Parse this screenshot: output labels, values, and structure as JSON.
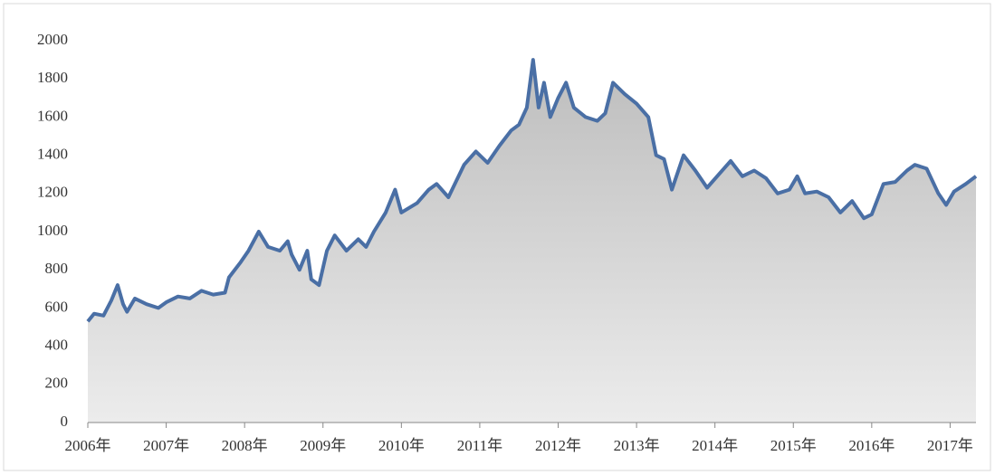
{
  "chart_data": {
    "type": "area",
    "x": [
      2006.0,
      2006.08,
      2006.2,
      2006.3,
      2006.38,
      2006.45,
      2006.5,
      2006.6,
      2006.75,
      2006.9,
      2007.0,
      2007.15,
      2007.3,
      2007.45,
      2007.6,
      2007.75,
      2007.8,
      2007.95,
      2008.05,
      2008.18,
      2008.3,
      2008.45,
      2008.55,
      2008.6,
      2008.7,
      2008.8,
      2008.85,
      2008.95,
      2009.05,
      2009.15,
      2009.3,
      2009.45,
      2009.55,
      2009.65,
      2009.8,
      2009.92,
      2010.0,
      2010.2,
      2010.35,
      2010.45,
      2010.6,
      2010.8,
      2010.95,
      2011.1,
      2011.25,
      2011.4,
      2011.5,
      2011.6,
      2011.68,
      2011.75,
      2011.82,
      2011.9,
      2012.0,
      2012.1,
      2012.2,
      2012.35,
      2012.5,
      2012.6,
      2012.7,
      2012.85,
      2013.0,
      2013.15,
      2013.25,
      2013.35,
      2013.45,
      2013.6,
      2013.75,
      2013.9,
      2014.05,
      2014.2,
      2014.35,
      2014.5,
      2014.65,
      2014.8,
      2014.95,
      2015.05,
      2015.15,
      2015.3,
      2015.45,
      2015.6,
      2015.75,
      2015.9,
      2016.0,
      2016.15,
      2016.3,
      2016.45,
      2016.55,
      2016.7,
      2016.85,
      2016.95,
      2017.05,
      2017.2,
      2017.33
    ],
    "series": [
      {
        "color": "#4a6fa5",
        "values": [
          530,
          570,
          560,
          640,
          720,
          620,
          580,
          650,
          620,
          600,
          630,
          660,
          650,
          690,
          670,
          680,
          760,
          840,
          900,
          1000,
          920,
          900,
          950,
          880,
          800,
          900,
          750,
          720,
          900,
          980,
          900,
          960,
          920,
          1000,
          1100,
          1220,
          1100,
          1150,
          1220,
          1250,
          1180,
          1350,
          1420,
          1360,
          1450,
          1530,
          1560,
          1650,
          1900,
          1650,
          1780,
          1600,
          1700,
          1780,
          1650,
          1600,
          1580,
          1620,
          1780,
          1720,
          1670,
          1600,
          1400,
          1380,
          1220,
          1400,
          1320,
          1230,
          1300,
          1370,
          1290,
          1320,
          1280,
          1200,
          1220,
          1290,
          1200,
          1210,
          1180,
          1100,
          1160,
          1070,
          1090,
          1250,
          1260,
          1320,
          1350,
          1330,
          1200,
          1140,
          1210,
          1250,
          1290
        ]
      }
    ],
    "xlim": [
      2006.0,
      2017.33
    ],
    "xticks": [
      {
        "value": 2006,
        "label": "2006年"
      },
      {
        "value": 2007,
        "label": "2007年"
      },
      {
        "value": 2008,
        "label": "2008年"
      },
      {
        "value": 2009,
        "label": "2009年"
      },
      {
        "value": 2010,
        "label": "2010年"
      },
      {
        "value": 2011,
        "label": "2011年"
      },
      {
        "value": 2012,
        "label": "2012年"
      },
      {
        "value": 2013,
        "label": "2013年"
      },
      {
        "value": 2014,
        "label": "2014年"
      },
      {
        "value": 2015,
        "label": "2015年"
      },
      {
        "value": 2016,
        "label": "2016年"
      },
      {
        "value": 2017,
        "label": "2017年"
      }
    ],
    "ylim": [
      0,
      2000
    ],
    "yticks": [
      0,
      200,
      400,
      600,
      800,
      1000,
      1200,
      1400,
      1600,
      1800,
      2000
    ]
  }
}
